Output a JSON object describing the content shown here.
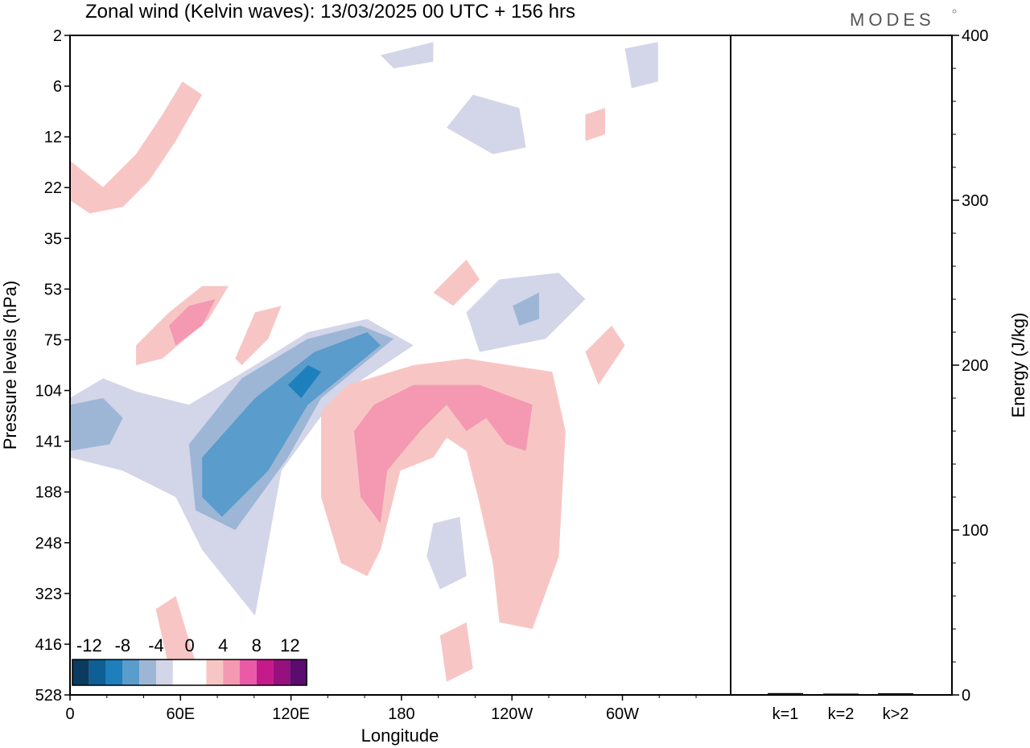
{
  "header": {
    "title": "Zonal wind (Kelvin waves):  13/03/2025  00 UTC  + 156 hrs",
    "brand": "MODES"
  },
  "chart_data": [
    {
      "type": "heatmap",
      "title": "Zonal wind (Kelvin waves):  13/03/2025  00 UTC  + 156 hrs",
      "xlabel": "Longitude",
      "ylabel": "Pressure levels (hPa)",
      "x_ticks": [
        "0",
        "60E",
        "120E",
        "180",
        "120W",
        "60W"
      ],
      "y_ticks": [
        "2",
        "6",
        "12",
        "22",
        "35",
        "53",
        "75",
        "104",
        "141",
        "188",
        "248",
        "323",
        "416",
        "528"
      ],
      "colorbar": {
        "labels": [
          "-12",
          "-8",
          "-4",
          "0",
          "4",
          "8",
          "12"
        ],
        "colors": [
          "#0b3b5e",
          "#0e5f96",
          "#1e7fbd",
          "#5a9ccb",
          "#9db6d6",
          "#d3d5e8",
          "#ffffff",
          "#ffffff",
          "#f7c6c4",
          "#f598b2",
          "#ea5aa7",
          "#c51b8a",
          "#96107e",
          "#5c0b6e"
        ]
      },
      "contours": [
        {
          "level": "-4",
          "color": "#d3d5e8",
          "points": [
            [
              0.0,
              0.55
            ],
            [
              0.05,
              0.52
            ],
            [
              0.1,
              0.54
            ],
            [
              0.18,
              0.56
            ],
            [
              0.28,
              0.5
            ],
            [
              0.36,
              0.45
            ],
            [
              0.45,
              0.43
            ],
            [
              0.52,
              0.47
            ],
            [
              0.4,
              0.55
            ],
            [
              0.32,
              0.66
            ],
            [
              0.28,
              0.88
            ],
            [
              0.2,
              0.78
            ],
            [
              0.16,
              0.7
            ],
            [
              0.08,
              0.66
            ],
            [
              0.0,
              0.64
            ]
          ]
        },
        {
          "level": "-4",
          "color": "#d3d5e8",
          "points": [
            [
              0.6,
              0.42
            ],
            [
              0.65,
              0.37
            ],
            [
              0.74,
              0.36
            ],
            [
              0.78,
              0.4
            ],
            [
              0.72,
              0.46
            ],
            [
              0.62,
              0.48
            ]
          ]
        },
        {
          "level": "-4",
          "color": "#d3d5e8",
          "points": [
            [
              0.57,
              0.14
            ],
            [
              0.61,
              0.09
            ],
            [
              0.68,
              0.11
            ],
            [
              0.69,
              0.17
            ],
            [
              0.64,
              0.18
            ]
          ]
        },
        {
          "level": "-4",
          "color": "#d3d5e8",
          "points": [
            [
              0.55,
              0.74
            ],
            [
              0.59,
              0.73
            ],
            [
              0.6,
              0.82
            ],
            [
              0.56,
              0.84
            ],
            [
              0.54,
              0.79
            ]
          ]
        },
        {
          "level": "-4",
          "color": "#d3d5e8",
          "points": [
            [
              0.47,
              0.03
            ],
            [
              0.55,
              0.01
            ],
            [
              0.55,
              0.04
            ],
            [
              0.49,
              0.05
            ]
          ]
        },
        {
          "level": "-4",
          "color": "#d3d5e8",
          "points": [
            [
              0.84,
              0.02
            ],
            [
              0.89,
              0.01
            ],
            [
              0.89,
              0.07
            ],
            [
              0.85,
              0.08
            ]
          ]
        },
        {
          "level": "-8",
          "color": "#9db6d6",
          "points": [
            [
              0.0,
              0.56
            ],
            [
              0.05,
              0.55
            ],
            [
              0.08,
              0.58
            ],
            [
              0.06,
              0.62
            ],
            [
              0.0,
              0.63
            ]
          ]
        },
        {
          "level": "-8",
          "color": "#9db6d6",
          "points": [
            [
              0.18,
              0.62
            ],
            [
              0.26,
              0.52
            ],
            [
              0.36,
              0.46
            ],
            [
              0.44,
              0.44
            ],
            [
              0.49,
              0.46
            ],
            [
              0.38,
              0.55
            ],
            [
              0.33,
              0.64
            ],
            [
              0.25,
              0.75
            ],
            [
              0.19,
              0.72
            ]
          ]
        },
        {
          "level": "-8",
          "color": "#9db6d6",
          "points": [
            [
              0.67,
              0.41
            ],
            [
              0.71,
              0.39
            ],
            [
              0.71,
              0.43
            ],
            [
              0.68,
              0.44
            ]
          ]
        },
        {
          "level": "-12",
          "color": "#5a9ccb",
          "points": [
            [
              0.2,
              0.64
            ],
            [
              0.28,
              0.55
            ],
            [
              0.37,
              0.48
            ],
            [
              0.45,
              0.45
            ],
            [
              0.47,
              0.47
            ],
            [
              0.36,
              0.56
            ],
            [
              0.3,
              0.66
            ],
            [
              0.23,
              0.73
            ],
            [
              0.2,
              0.7
            ]
          ]
        },
        {
          "level": "-16",
          "color": "#1e7fbd",
          "points": [
            [
              0.33,
              0.53
            ],
            [
              0.36,
              0.5
            ],
            [
              0.38,
              0.51
            ],
            [
              0.35,
              0.55
            ]
          ]
        },
        {
          "level": "4",
          "color": "#f7c6c4",
          "points": [
            [
              0.38,
              0.57
            ],
            [
              0.42,
              0.53
            ],
            [
              0.52,
              0.5
            ],
            [
              0.6,
              0.49
            ],
            [
              0.73,
              0.51
            ],
            [
              0.75,
              0.6
            ],
            [
              0.74,
              0.79
            ],
            [
              0.7,
              0.9
            ],
            [
              0.65,
              0.89
            ],
            [
              0.64,
              0.8
            ],
            [
              0.62,
              0.71
            ],
            [
              0.6,
              0.63
            ],
            [
              0.57,
              0.61
            ],
            [
              0.55,
              0.64
            ],
            [
              0.5,
              0.66
            ],
            [
              0.47,
              0.78
            ],
            [
              0.45,
              0.82
            ],
            [
              0.41,
              0.8
            ],
            [
              0.38,
              0.7
            ]
          ]
        },
        {
          "level": "4",
          "color": "#f7c6c4",
          "points": [
            [
              0.1,
              0.47
            ],
            [
              0.15,
              0.42
            ],
            [
              0.2,
              0.38
            ],
            [
              0.24,
              0.38
            ],
            [
              0.21,
              0.43
            ],
            [
              0.14,
              0.49
            ],
            [
              0.1,
              0.5
            ]
          ]
        },
        {
          "level": "4",
          "color": "#f7c6c4",
          "points": [
            [
              0.25,
              0.49
            ],
            [
              0.28,
              0.42
            ],
            [
              0.32,
              0.41
            ],
            [
              0.3,
              0.46
            ],
            [
              0.26,
              0.5
            ]
          ]
        },
        {
          "level": "4",
          "color": "#f7c6c4",
          "points": [
            [
              0.0,
              0.19
            ],
            [
              0.05,
              0.23
            ],
            [
              0.1,
              0.18
            ],
            [
              0.14,
              0.12
            ],
            [
              0.17,
              0.07
            ],
            [
              0.2,
              0.09
            ],
            [
              0.16,
              0.16
            ],
            [
              0.12,
              0.22
            ],
            [
              0.08,
              0.26
            ],
            [
              0.03,
              0.27
            ],
            [
              0.0,
              0.25
            ]
          ]
        },
        {
          "level": "4",
          "color": "#f7c6c4",
          "points": [
            [
              0.55,
              0.39
            ],
            [
              0.6,
              0.34
            ],
            [
              0.62,
              0.37
            ],
            [
              0.58,
              0.41
            ]
          ]
        },
        {
          "level": "4",
          "color": "#f7c6c4",
          "points": [
            [
              0.13,
              0.87
            ],
            [
              0.16,
              0.85
            ],
            [
              0.19,
              0.95
            ],
            [
              0.15,
              0.96
            ]
          ]
        },
        {
          "level": "4",
          "color": "#f7c6c4",
          "points": [
            [
              0.56,
              0.91
            ],
            [
              0.6,
              0.89
            ],
            [
              0.61,
              0.96
            ],
            [
              0.57,
              0.98
            ]
          ]
        },
        {
          "level": "4",
          "color": "#f7c6c4",
          "points": [
            [
              0.78,
              0.48
            ],
            [
              0.82,
              0.44
            ],
            [
              0.84,
              0.47
            ],
            [
              0.8,
              0.53
            ]
          ]
        },
        {
          "level": "4",
          "color": "#f7c6c4",
          "points": [
            [
              0.78,
              0.12
            ],
            [
              0.81,
              0.11
            ],
            [
              0.81,
              0.15
            ],
            [
              0.78,
              0.16
            ]
          ]
        },
        {
          "level": "8",
          "color": "#f598b2",
          "points": [
            [
              0.43,
              0.6
            ],
            [
              0.46,
              0.56
            ],
            [
              0.52,
              0.53
            ],
            [
              0.62,
              0.53
            ],
            [
              0.7,
              0.56
            ],
            [
              0.69,
              0.63
            ],
            [
              0.66,
              0.62
            ],
            [
              0.63,
              0.58
            ],
            [
              0.6,
              0.6
            ],
            [
              0.57,
              0.56
            ],
            [
              0.53,
              0.6
            ],
            [
              0.48,
              0.66
            ],
            [
              0.47,
              0.74
            ],
            [
              0.44,
              0.7
            ]
          ]
        },
        {
          "level": "8",
          "color": "#f598b2",
          "points": [
            [
              0.15,
              0.44
            ],
            [
              0.18,
              0.41
            ],
            [
              0.22,
              0.4
            ],
            [
              0.2,
              0.44
            ],
            [
              0.16,
              0.47
            ]
          ]
        }
      ],
      "side_panel": {
        "ylabel": "Energy (J/kg)",
        "ylim": [
          0,
          400
        ],
        "y_ticks": [
          "0",
          "100",
          "200",
          "300",
          "400"
        ],
        "categories": [
          "k=1",
          "k=2",
          "k>2"
        ],
        "values": [
          0.6,
          0.3,
          0.5
        ],
        "bar_color": "#000000"
      }
    }
  ]
}
